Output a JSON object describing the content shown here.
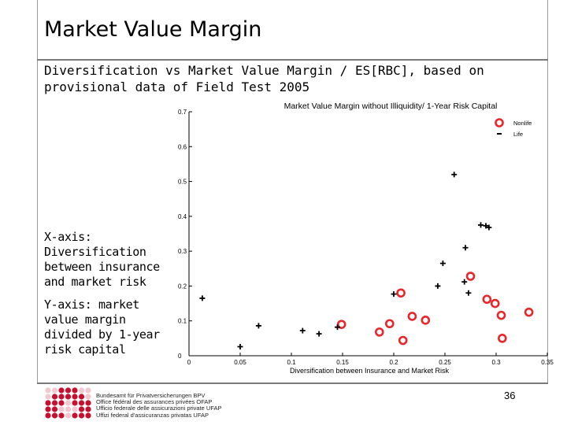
{
  "slide": {
    "title": "Market Value Margin",
    "subtitle_line1": "Diversification vs Market Value Margin / ES[RBC], based on",
    "subtitle_line2": "provisional data of Field Test 2005",
    "x_note": "X-axis: Diversification between insurance and market risk",
    "y_note": "Y-axis: market value margin divided by 1-year risk capital",
    "page_number": "36"
  },
  "footer": {
    "logo_lines": [
      "Bundesamt für Privatversicherungen BPV",
      "Office fédéral des assurances privées OFAP",
      "Ufficio federale delle assicurazioni private UFAP",
      "Uffizi federal d'assicuranzas privatas UFAP"
    ],
    "logo_color": "#c8102e"
  },
  "chart_data": {
    "type": "scatter",
    "title": "Market Value Margin without Illiquidity/ 1-Year Risk Capital",
    "xlabel": "Diversification between Insurance and Market Risk",
    "ylabel": "",
    "xlim": [
      0,
      0.35
    ],
    "ylim": [
      0,
      0.7
    ],
    "x_ticks": [
      "0",
      "0.05",
      "0.1",
      "0.15",
      "0.2",
      "0.25",
      "0.3",
      "0.35"
    ],
    "y_ticks": [
      "0",
      "0.1",
      "0.2",
      "0.3",
      "0.4",
      "0.5",
      "0.6",
      "0.7"
    ],
    "legend_position": "top-right",
    "series": [
      {
        "name": "Nonlife",
        "marker": "circle",
        "color": "#e8262b",
        "points": [
          [
            0.149,
            0.09
          ],
          [
            0.186,
            0.068
          ],
          [
            0.196,
            0.092
          ],
          [
            0.207,
            0.18
          ],
          [
            0.209,
            0.044
          ],
          [
            0.218,
            0.113
          ],
          [
            0.231,
            0.102
          ],
          [
            0.275,
            0.228
          ],
          [
            0.291,
            0.162
          ],
          [
            0.299,
            0.15
          ],
          [
            0.305,
            0.116
          ],
          [
            0.306,
            0.05
          ],
          [
            0.332,
            0.125
          ]
        ]
      },
      {
        "name": "Life",
        "marker": "plus",
        "color": "#000000",
        "points": [
          [
            0.013,
            0.165
          ],
          [
            0.05,
            0.026
          ],
          [
            0.068,
            0.086
          ],
          [
            0.111,
            0.072
          ],
          [
            0.127,
            0.063
          ],
          [
            0.145,
            0.082
          ],
          [
            0.2,
            0.177
          ],
          [
            0.243,
            0.2
          ],
          [
            0.248,
            0.265
          ],
          [
            0.259,
            0.52
          ],
          [
            0.269,
            0.212
          ],
          [
            0.27,
            0.31
          ],
          [
            0.273,
            0.18
          ],
          [
            0.285,
            0.375
          ],
          [
            0.29,
            0.373
          ],
          [
            0.293,
            0.368
          ]
        ]
      }
    ]
  }
}
